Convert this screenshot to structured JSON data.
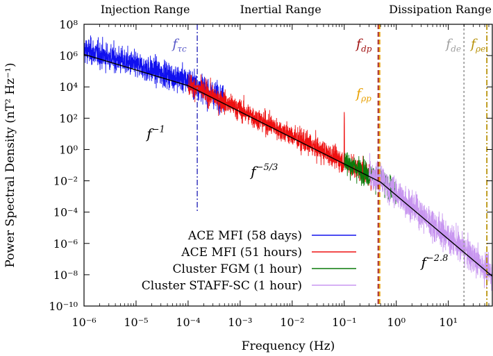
{
  "chart_data": {
    "type": "line",
    "title": "",
    "xlabel": "Frequency (Hz)",
    "ylabel": "Power Spectral Density (nT² Hz⁻¹)",
    "x_scale": "log",
    "y_scale": "log",
    "xlim": [
      1e-06,
      70
    ],
    "ylim": [
      1e-10,
      100000000.0
    ],
    "x_ticks": [
      {
        "value": 1e-06,
        "label": "10⁻⁶"
      },
      {
        "value": 1e-05,
        "label": "10⁻⁵"
      },
      {
        "value": 0.0001,
        "label": "10⁻⁴"
      },
      {
        "value": 0.001,
        "label": "10⁻³"
      },
      {
        "value": 0.01,
        "label": "10⁻²"
      },
      {
        "value": 0.1,
        "label": "10⁻¹"
      },
      {
        "value": 1,
        "label": "10⁰"
      },
      {
        "value": 10,
        "label": "10¹"
      }
    ],
    "y_ticks": [
      {
        "value": 100000000.0,
        "label": "10⁸"
      },
      {
        "value": 1000000.0,
        "label": "10⁶"
      },
      {
        "value": 10000.0,
        "label": "10⁴"
      },
      {
        "value": 100.0,
        "label": "10²"
      },
      {
        "value": 1,
        "label": "10⁰"
      },
      {
        "value": 0.01,
        "label": "10⁻²"
      },
      {
        "value": 0.0001,
        "label": "10⁻⁴"
      },
      {
        "value": 1e-06,
        "label": "10⁻⁶"
      },
      {
        "value": 1e-08,
        "label": "10⁻⁸"
      },
      {
        "value": 1e-10,
        "label": "10⁻¹⁰"
      }
    ],
    "ranges": [
      {
        "label": "Injection Range",
        "x": 1.5e-05
      },
      {
        "label": "Inertial Range",
        "x": 0.006
      },
      {
        "label": "Dissipation Range",
        "x": 7
      }
    ],
    "series": [
      {
        "name": "ACE MFI (58 days)",
        "color": "#1010ee",
        "f_min": 1e-06,
        "f_max": 0.0005,
        "amp": 2,
        "noise": 0.6
      },
      {
        "name": "ACE MFI (51 hours)",
        "color": "#ee1010",
        "f_min": 0.0001,
        "f_max": 0.5,
        "amp": 1.3,
        "noise": 0.5
      },
      {
        "name": "Cluster FGM (1 hour)",
        "color": "#0a7a0a",
        "f_min": 0.1,
        "f_max": 1.0,
        "amp": 1.4,
        "noise": 0.55
      },
      {
        "name": "Cluster STAFF-SC (1 hour)",
        "color": "#c896f0",
        "f_min": 0.3,
        "f_max": 70,
        "amp": 1.4,
        "noise": 0.7
      }
    ],
    "fit_segments": [
      {
        "label": "f^-1",
        "slope": -1,
        "f_start": 1e-06,
        "f_end": 0.0001
      },
      {
        "label": "f^-5/3",
        "slope": -1.6667,
        "f_start": 0.0001,
        "f_end": 0.5
      },
      {
        "label": "f^-2.8",
        "slope": -2.8,
        "f_start": 0.5,
        "f_end": 70
      }
    ],
    "fit_start_psd": 1200000.0,
    "annotations": {
      "fit1": {
        "base": "f",
        "exp": "−1",
        "x": 1.6e-05,
        "y": 5
      },
      "fit2": {
        "base": "f",
        "exp": "−5/3",
        "x": 0.0016,
        "y": 0.02
      },
      "fit3": {
        "base": "f",
        "exp": "−2.8",
        "x": 3.0,
        "y": 3e-08
      }
    },
    "markers": [
      {
        "id": "tau",
        "label": "f",
        "sub": "τc",
        "x": 0.00015,
        "color": "#5858c8",
        "style": "dashdot",
        "y_bottom": 0.0001,
        "label_x": 5e-05,
        "label_y": 3000000.0,
        "label_anchor": "start"
      },
      {
        "id": "dp",
        "label": "f",
        "sub": "dp",
        "x": 0.45,
        "color": "#a01414",
        "style": "dashed",
        "y_bottom": 1e-10,
        "label_x": 0.17,
        "label_y": 3000000.0,
        "label_anchor": "start"
      },
      {
        "id": "rhop",
        "label": "f",
        "sub": "ρp",
        "x": 0.48,
        "color": "#e8a000",
        "style": "dashed",
        "y_bottom": 1e-10,
        "label_x": 0.17,
        "label_y": 2000.0,
        "label_anchor": "start"
      },
      {
        "id": "de",
        "label": "f",
        "sub": "de",
        "x": 20,
        "color": "#a0a0a0",
        "style": "dotted",
        "y_bottom": 1e-10,
        "label_x": 9.0,
        "label_y": 3000000.0,
        "label_anchor": "start"
      },
      {
        "id": "rhoe",
        "label": "f",
        "sub": "ρe",
        "x": 55,
        "color": "#b8920a",
        "style": "dashdot",
        "y_bottom": 1e-10,
        "label_x": 27,
        "label_y": 3000000.0,
        "label_anchor": "start"
      }
    ]
  }
}
